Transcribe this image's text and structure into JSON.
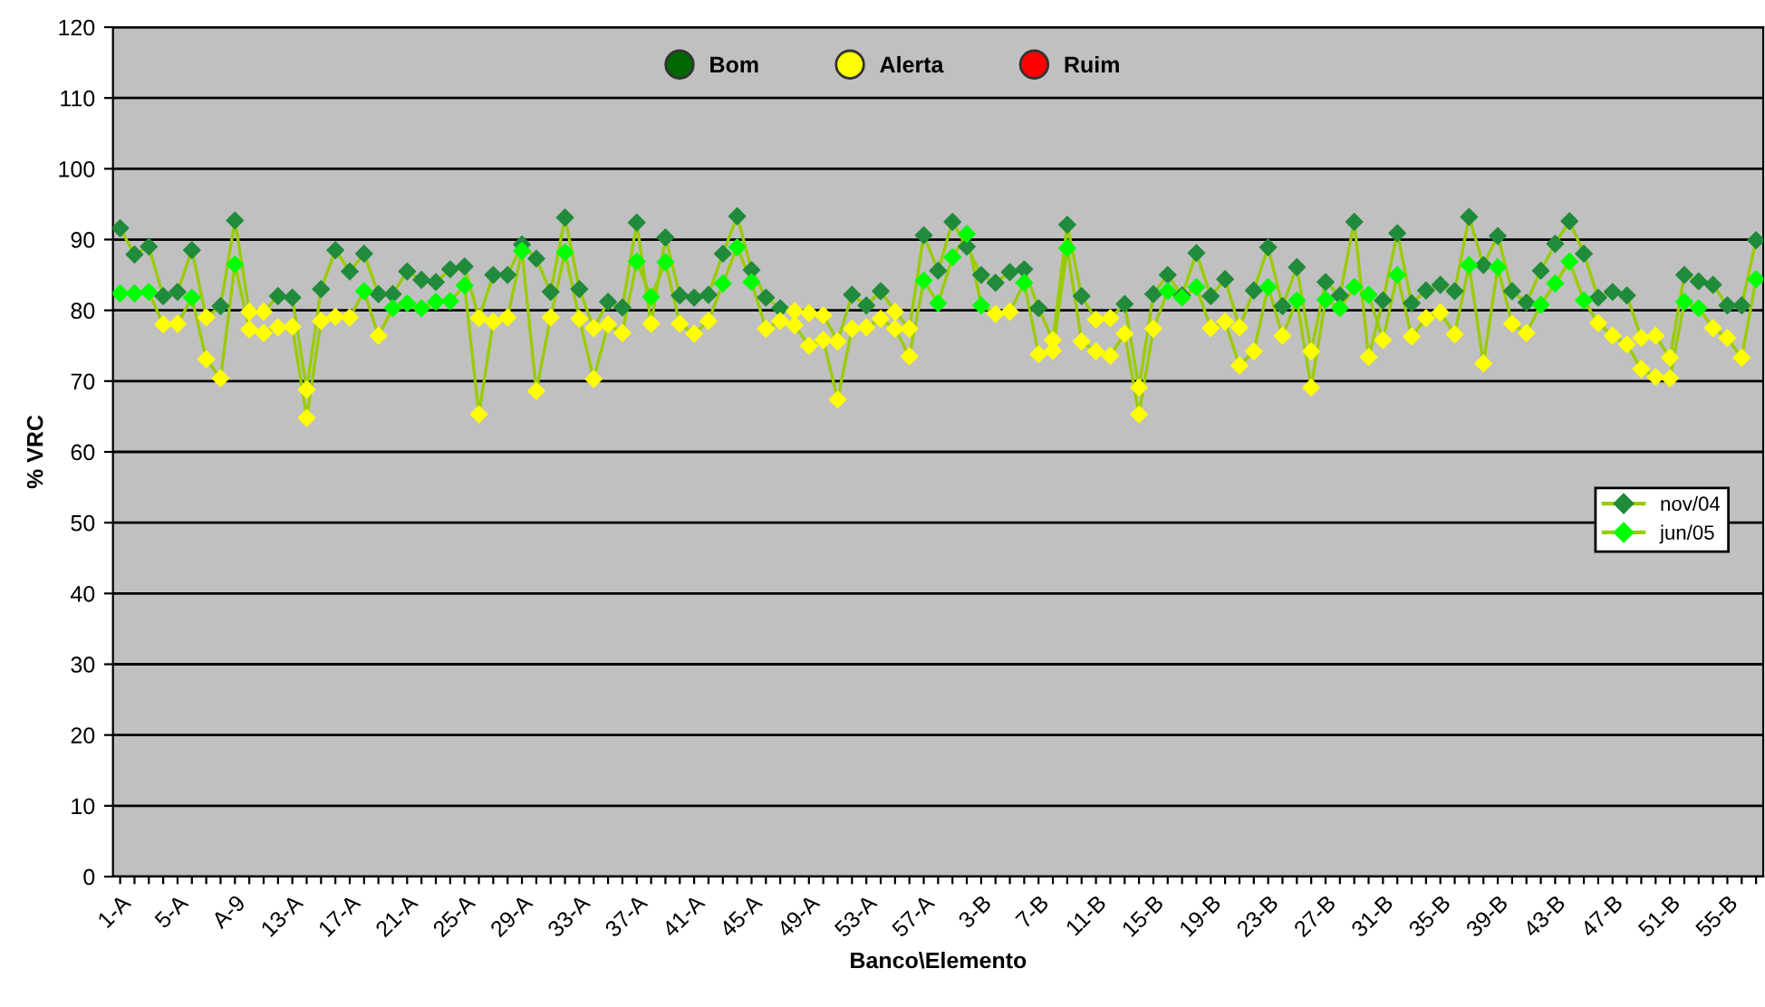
{
  "chart_data": {
    "type": "line",
    "xlabel": "Banco\\Elemento",
    "ylabel": "% VRC",
    "categories": [
      "1-A",
      null,
      null,
      null,
      "5-A",
      null,
      null,
      null,
      "A-9",
      null,
      null,
      null,
      "13-A",
      null,
      null,
      null,
      "17-A",
      null,
      null,
      null,
      "21-A",
      null,
      null,
      null,
      "25-A",
      null,
      null,
      null,
      "29-A",
      null,
      null,
      null,
      "33-A",
      null,
      null,
      null,
      "37-A",
      null,
      null,
      null,
      "41-A",
      null,
      null,
      null,
      "45-A",
      null,
      null,
      null,
      "49-A",
      null,
      null,
      null,
      "53-A",
      null,
      null,
      null,
      "57-A",
      null,
      null,
      null,
      "3-B",
      null,
      null,
      null,
      "7-B",
      null,
      null,
      null,
      "11-B",
      null,
      null,
      null,
      "15-B",
      null,
      null,
      null,
      "19-B",
      null,
      null,
      null,
      "23-B",
      null,
      null,
      null,
      "27-B",
      null,
      null,
      null,
      "31-B",
      null,
      null,
      null,
      "35-B",
      null,
      null,
      null,
      "39-B",
      null,
      null,
      null,
      "43-B",
      null,
      null,
      null,
      "47-B",
      null,
      null,
      null,
      "51-B",
      null,
      null,
      null,
      "55-B",
      null,
      null
    ],
    "ylim": [
      0,
      120
    ],
    "yticks": [
      0,
      10,
      20,
      30,
      40,
      50,
      60,
      70,
      80,
      90,
      100,
      110,
      120
    ],
    "grid": "y",
    "legend": "right",
    "marker": "diamond",
    "series": [
      {
        "name": "nov/04",
        "color": "#99cc00",
        "values": [
          91.6,
          87.9,
          89.0,
          82.0,
          82.6,
          88.5,
          79.0,
          80.6,
          92.7,
          79.8,
          79.8,
          82.0,
          81.8,
          68.8,
          83.0,
          88.5,
          85.5,
          88.0,
          82.3,
          82.3,
          85.5,
          84.3,
          84.0,
          85.8,
          86.2,
          78.9,
          85.0,
          85.0,
          89.3,
          87.3,
          82.6,
          93.1,
          83.0,
          77.5,
          81.2,
          80.4,
          92.4,
          78.1,
          90.3,
          82.1,
          81.8,
          82.2,
          88.0,
          93.3,
          85.7,
          81.8,
          80.3,
          79.9,
          79.6,
          79.3,
          75.6,
          82.2,
          80.7,
          82.7,
          79.8,
          77.4,
          90.6,
          85.6,
          92.5,
          89.0,
          85.0,
          83.9,
          85.4,
          85.8,
          80.3,
          75.8,
          92.1,
          82.0,
          78.7,
          78.9,
          80.9,
          69.1,
          82.3,
          85.0,
          82.1,
          88.1,
          82.0,
          84.4,
          77.6,
          82.8,
          88.9,
          80.6,
          86.1,
          74.2,
          84.0,
          82.1,
          92.5,
          73.4,
          81.4,
          90.9,
          81.0,
          82.8,
          83.6,
          82.7,
          93.2,
          86.4,
          90.5,
          82.7,
          81.1,
          85.6,
          89.4,
          92.6,
          88.0,
          81.8,
          82.6,
          82.1,
          76.1,
          76.4,
          73.3,
          85.0,
          84.1,
          83.6,
          80.7,
          80.7,
          89.9
        ],
        "colors": [
          "#208b3a",
          "#208b3a",
          "#208b3a",
          "#208b3a",
          "#208b3a",
          "#208b3a",
          "#ffff00",
          "#208b3a",
          "#208b3a",
          "#ffff00",
          "#ffff00",
          "#208b3a",
          "#208b3a",
          "#ffff00",
          "#208b3a",
          "#208b3a",
          "#208b3a",
          "#208b3a",
          "#208b3a",
          "#208b3a",
          "#208b3a",
          "#208b3a",
          "#208b3a",
          "#208b3a",
          "#208b3a",
          "#ffff00",
          "#208b3a",
          "#208b3a",
          "#208b3a",
          "#208b3a",
          "#208b3a",
          "#208b3a",
          "#208b3a",
          "#ffff00",
          "#208b3a",
          "#208b3a",
          "#208b3a",
          "#ffff00",
          "#208b3a",
          "#208b3a",
          "#208b3a",
          "#208b3a",
          "#208b3a",
          "#208b3a",
          "#208b3a",
          "#208b3a",
          "#208b3a",
          "#ffff00",
          "#ffff00",
          "#ffff00",
          "#ffff00",
          "#208b3a",
          "#208b3a",
          "#208b3a",
          "#ffff00",
          "#ffff00",
          "#208b3a",
          "#208b3a",
          "#208b3a",
          "#208b3a",
          "#208b3a",
          "#208b3a",
          "#208b3a",
          "#208b3a",
          "#208b3a",
          "#ffff00",
          "#208b3a",
          "#208b3a",
          "#ffff00",
          "#ffff00",
          "#208b3a",
          "#ffff00",
          "#208b3a",
          "#208b3a",
          "#208b3a",
          "#208b3a",
          "#208b3a",
          "#208b3a",
          "#ffff00",
          "#208b3a",
          "#208b3a",
          "#208b3a",
          "#208b3a",
          "#ffff00",
          "#208b3a",
          "#208b3a",
          "#208b3a",
          "#ffff00",
          "#208b3a",
          "#208b3a",
          "#208b3a",
          "#208b3a",
          "#208b3a",
          "#208b3a",
          "#208b3a",
          "#208b3a",
          "#208b3a",
          "#208b3a",
          "#208b3a",
          "#208b3a",
          "#208b3a",
          "#208b3a",
          "#208b3a",
          "#208b3a",
          "#208b3a",
          "#208b3a",
          "#ffff00",
          "#ffff00",
          "#ffff00",
          "#208b3a",
          "#208b3a",
          "#208b3a",
          "#208b3a",
          "#208b3a",
          "#208b3a"
        ]
      },
      {
        "name": "jun/05",
        "color": "#99cc00",
        "values": [
          82.4,
          82.4,
          82.6,
          78.0,
          78.1,
          81.8,
          73.1,
          70.4,
          86.5,
          77.3,
          76.8,
          77.6,
          77.7,
          64.8,
          78.5,
          79.1,
          79.0,
          82.7,
          76.4,
          80.3,
          81.0,
          80.3,
          81.2,
          81.3,
          83.5,
          65.3,
          78.4,
          79.0,
          88.4,
          68.6,
          79.0,
          88.2,
          78.8,
          70.3,
          78.0,
          76.8,
          86.9,
          81.9,
          86.8,
          78.1,
          76.7,
          78.5,
          83.8,
          88.9,
          84.0,
          77.4,
          78.5,
          77.9,
          75.0,
          75.8,
          67.4,
          77.4,
          77.6,
          78.8,
          77.4,
          73.5,
          84.2,
          81.0,
          87.5,
          90.8,
          80.7,
          79.5,
          79.8,
          83.9,
          73.8,
          74.3,
          88.8,
          75.6,
          74.2,
          73.6,
          76.7,
          65.3,
          77.4,
          82.7,
          81.8,
          83.3,
          77.5,
          78.4,
          72.2,
          74.2,
          83.3,
          76.4,
          81.4,
          69.1,
          81.5,
          80.3,
          83.3,
          82.2,
          75.8,
          85.0,
          76.3,
          78.9,
          79.7,
          76.6,
          86.4,
          72.5,
          86.1,
          78.1,
          76.8,
          80.8,
          83.8,
          86.9,
          81.4,
          78.2,
          76.4,
          75.2,
          71.7,
          70.6,
          70.4,
          81.2,
          80.3,
          77.5,
          76.1,
          73.3,
          84.4
        ],
        "colors": [
          "#00ff00",
          "#00ff00",
          "#00ff00",
          "#ffff00",
          "#ffff00",
          "#00ff00",
          "#ffff00",
          "#ffff00",
          "#00ff00",
          "#ffff00",
          "#ffff00",
          "#ffff00",
          "#ffff00",
          "#ffff00",
          "#ffff00",
          "#ffff00",
          "#ffff00",
          "#00ff00",
          "#ffff00",
          "#00ff00",
          "#00ff00",
          "#00ff00",
          "#00ff00",
          "#00ff00",
          "#00ff00",
          "#ffff00",
          "#ffff00",
          "#ffff00",
          "#00ff00",
          "#ffff00",
          "#ffff00",
          "#00ff00",
          "#ffff00",
          "#ffff00",
          "#ffff00",
          "#ffff00",
          "#00ff00",
          "#00ff00",
          "#00ff00",
          "#ffff00",
          "#ffff00",
          "#ffff00",
          "#00ff00",
          "#00ff00",
          "#00ff00",
          "#ffff00",
          "#ffff00",
          "#ffff00",
          "#ffff00",
          "#ffff00",
          "#ffff00",
          "#ffff00",
          "#ffff00",
          "#ffff00",
          "#ffff00",
          "#ffff00",
          "#00ff00",
          "#00ff00",
          "#00ff00",
          "#00ff00",
          "#00ff00",
          "#ffff00",
          "#ffff00",
          "#00ff00",
          "#ffff00",
          "#ffff00",
          "#00ff00",
          "#ffff00",
          "#ffff00",
          "#ffff00",
          "#ffff00",
          "#ffff00",
          "#ffff00",
          "#00ff00",
          "#00ff00",
          "#00ff00",
          "#ffff00",
          "#ffff00",
          "#ffff00",
          "#ffff00",
          "#00ff00",
          "#ffff00",
          "#00ff00",
          "#ffff00",
          "#00ff00",
          "#00ff00",
          "#00ff00",
          "#00ff00",
          "#ffff00",
          "#00ff00",
          "#ffff00",
          "#ffff00",
          "#ffff00",
          "#ffff00",
          "#00ff00",
          "#ffff00",
          "#00ff00",
          "#ffff00",
          "#ffff00",
          "#00ff00",
          "#00ff00",
          "#00ff00",
          "#00ff00",
          "#ffff00",
          "#ffff00",
          "#ffff00",
          "#ffff00",
          "#ffff00",
          "#ffff00",
          "#00ff00",
          "#00ff00",
          "#ffff00",
          "#ffff00",
          "#ffff00",
          "#00ff00"
        ]
      }
    ],
    "annotations": [
      "Bom",
      "Alerta",
      "Ruim"
    ]
  }
}
